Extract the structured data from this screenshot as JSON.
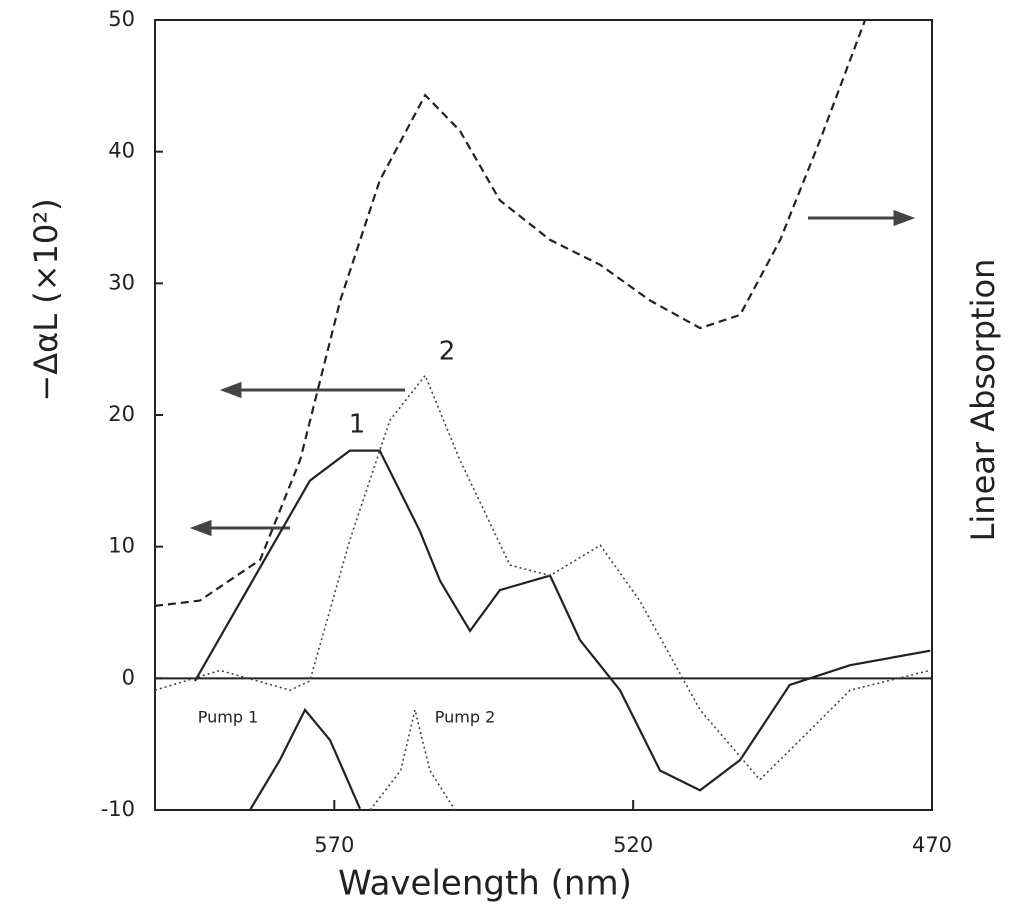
{
  "chart_data": {
    "type": "line",
    "xlabel": "Wavelength (nm)",
    "ylabel": "−ΔαL (×10²)",
    "y2label": "Linear Absorption",
    "xlim": [
      600,
      470
    ],
    "xticks": [
      570,
      520,
      470
    ],
    "ylim": [
      -10,
      50
    ],
    "yticks": [
      -10,
      0,
      10,
      20,
      30,
      40,
      50
    ],
    "zero_line": true,
    "series": [
      {
        "name": "1",
        "color": "#222222",
        "style": "solid",
        "x": [
          593.3,
          587.5,
          580.8,
          574.1,
          567.4,
          562.4,
          555.7,
          552.3,
          547.3,
          542.3,
          533.9,
          528.9,
          522.2,
          515.5,
          508.8,
          502.1,
          493.8,
          483.7,
          470.3
        ],
        "values": [
          -0.2,
          4.4,
          9.7,
          15,
          17.3,
          17.3,
          11.2,
          7.4,
          3.6,
          6.7,
          7.8,
          2.9,
          -0.9,
          -7,
          -8.5,
          -6.2,
          -0.5,
          1,
          2.1
        ]
      },
      {
        "name": "2",
        "color": "#444444",
        "style": "dotted",
        "x": [
          600,
          589.1,
          577.4,
          574.1,
          567.4,
          560.7,
          554.8,
          549,
          540.6,
          533.9,
          525.5,
          518.9,
          508.8,
          498.8,
          492.1,
          483.7,
          470.3
        ],
        "values": [
          -0.9,
          0.6,
          -0.9,
          -0.2,
          10.5,
          19.6,
          23,
          16.6,
          8.6,
          7.8,
          10.1,
          5.9,
          -2.4,
          -7.7,
          -4.7,
          -0.9,
          0.6
        ]
      },
      {
        "color": "#222222",
        "style": "dashed",
        "x": [
          600,
          592.5,
          582.4,
          575.7,
          569,
          562.4,
          554.8,
          549,
          542.3,
          533.9,
          525.5,
          517.2,
          508.8,
          502.1,
          495.4,
          488.7,
          481.2
        ],
        "values": [
          5.5,
          5.9,
          9,
          16.6,
          28.7,
          37.8,
          44.3,
          41.6,
          36.3,
          33.3,
          31.4,
          28.7,
          26.6,
          27.6,
          33.3,
          40.9,
          50
        ]
      },
      {
        "name": "Pump 1",
        "color": "#222222",
        "style": "solid",
        "x": [
          584.1,
          579.1,
          574.9,
          570.7,
          565.7
        ],
        "values": [
          -10,
          -6.2,
          -2.4,
          -4.7,
          -9.9
        ]
      },
      {
        "name": "Pump 2",
        "color": "#444444",
        "style": "dotted",
        "x": [
          564,
          558.9,
          556.5,
          554,
          549.8
        ],
        "values": [
          -10,
          -7,
          -2.4,
          -7,
          -10
        ]
      }
    ]
  }
}
